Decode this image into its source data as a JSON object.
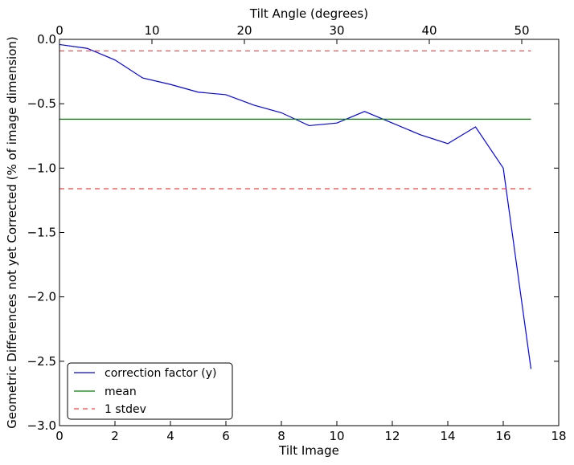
{
  "chart_data": {
    "type": "line",
    "xlabel": "Tilt Image",
    "ylabel": "Geometric Differences not yet Corrected (% of image dimension)",
    "top_xlabel": "Tilt Angle (degrees)",
    "xlim": [
      0,
      18
    ],
    "ylim": [
      -3.0,
      0.0
    ],
    "top_xlim": [
      0,
      54
    ],
    "xticks": [
      0,
      2,
      4,
      6,
      8,
      10,
      12,
      14,
      16,
      18
    ],
    "xtick_labels": [
      "0",
      "2",
      "4",
      "6",
      "8",
      "10",
      "12",
      "14",
      "16",
      "18"
    ],
    "yticks": [
      0.0,
      -0.5,
      -1.0,
      -1.5,
      -2.0,
      -2.5,
      -3.0
    ],
    "ytick_labels": [
      "0.0",
      "−0.5",
      "−1.0",
      "−1.5",
      "−2.0",
      "−2.5",
      "−3.0"
    ],
    "top_xticks": [
      0,
      10,
      20,
      30,
      40,
      50
    ],
    "top_xtick_labels": [
      "0",
      "10",
      "20",
      "30",
      "40",
      "50"
    ],
    "grid": false,
    "legend_position": "lower-left",
    "series": [
      {
        "name": "correction factor (y)",
        "color": "#0000ff",
        "style": "solid",
        "x": [
          0,
          1,
          2,
          3,
          4,
          5,
          6,
          7,
          8,
          9,
          10,
          11,
          12,
          13,
          14,
          15,
          16,
          17
        ],
        "values": [
          -0.04,
          -0.07,
          -0.16,
          -0.3,
          -0.35,
          -0.41,
          -0.43,
          -0.51,
          -0.57,
          -0.67,
          -0.65,
          -0.56,
          -0.65,
          -0.74,
          -0.81,
          -0.68,
          -1.0,
          -2.56
        ]
      },
      {
        "name": "mean",
        "color": "#008000",
        "style": "solid",
        "x": [
          0,
          17
        ],
        "values": [
          -0.62,
          -0.62
        ]
      },
      {
        "name": "1 stdev",
        "color": "#ff0000",
        "style": "dashed",
        "x": [
          0,
          17
        ],
        "values": [
          -0.09,
          -0.09
        ]
      },
      {
        "name": "1 stdev",
        "color": "#ff0000",
        "style": "dashed",
        "x": [
          0,
          17
        ],
        "values": [
          -1.16,
          -1.16
        ]
      }
    ],
    "legend": [
      {
        "label": "correction factor (y)",
        "color": "#0000ff",
        "style": "solid"
      },
      {
        "label": "mean",
        "color": "#008000",
        "style": "solid"
      },
      {
        "label": "1 stdev",
        "color": "#ff0000",
        "style": "dashed"
      }
    ]
  }
}
